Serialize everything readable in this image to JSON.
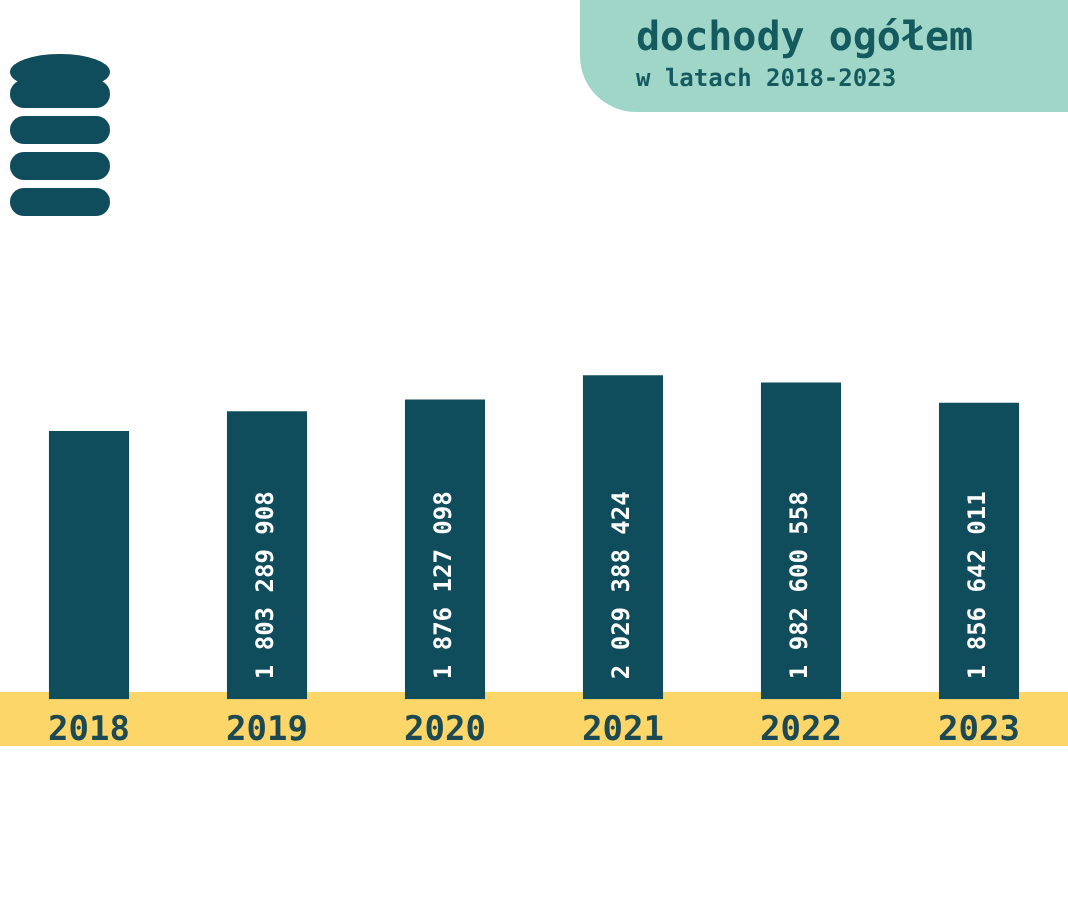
{
  "chart_data": {
    "type": "bar",
    "title": "dochody ogółem",
    "subtitle": "w latach 2018-2023",
    "categories": [
      "2018",
      "2019",
      "2020",
      "2021",
      "2022",
      "2023"
    ],
    "values": [
      1680000000,
      1803289908,
      1876127098,
      2029388424,
      1982600558,
      1856642011
    ],
    "value_labels": [
      null,
      "1 803 289 908",
      "1 876 127 098",
      "2 029 388 424",
      "1 982 600 558",
      "1 856 642 011"
    ],
    "color": "#0f4c5c",
    "grid": false,
    "legend": false
  }
}
